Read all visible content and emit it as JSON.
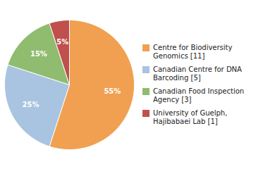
{
  "chart_data": {
    "type": "pie",
    "categories": [
      "Centre for Biodiversity\nGenomics [11]",
      "Canadian Centre for DNA\nBarcoding [5]",
      "Canadian Food Inspection\nAgency [3]",
      "University of Guelph,\nHajibabaei Lab [1]"
    ],
    "values": [
      55,
      25,
      15,
      5
    ],
    "value_labels": [
      "55%",
      "25%",
      "15%",
      "5%"
    ],
    "colors": [
      "#f0a050",
      "#a8c4e0",
      "#8fbc6f",
      "#c0504d"
    ],
    "data_labels": true,
    "legend": "right"
  }
}
